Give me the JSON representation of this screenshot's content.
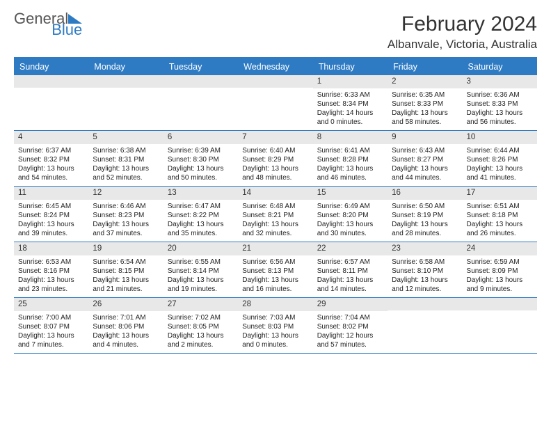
{
  "logo": {
    "part1": "General",
    "part2": "Blue"
  },
  "title": "February 2024",
  "location": "Albanvale, Victoria, Australia",
  "colors": {
    "accent": "#2e7bc4",
    "band": "#e8e8e8",
    "text": "#222222",
    "bg": "#ffffff"
  },
  "day_headers": [
    "Sunday",
    "Monday",
    "Tuesday",
    "Wednesday",
    "Thursday",
    "Friday",
    "Saturday"
  ],
  "weeks": [
    [
      {
        "date": "",
        "sunrise": "",
        "sunset": "",
        "daylight": ""
      },
      {
        "date": "",
        "sunrise": "",
        "sunset": "",
        "daylight": ""
      },
      {
        "date": "",
        "sunrise": "",
        "sunset": "",
        "daylight": ""
      },
      {
        "date": "",
        "sunrise": "",
        "sunset": "",
        "daylight": ""
      },
      {
        "date": "1",
        "sunrise": "Sunrise: 6:33 AM",
        "sunset": "Sunset: 8:34 PM",
        "daylight": "Daylight: 14 hours and 0 minutes."
      },
      {
        "date": "2",
        "sunrise": "Sunrise: 6:35 AM",
        "sunset": "Sunset: 8:33 PM",
        "daylight": "Daylight: 13 hours and 58 minutes."
      },
      {
        "date": "3",
        "sunrise": "Sunrise: 6:36 AM",
        "sunset": "Sunset: 8:33 PM",
        "daylight": "Daylight: 13 hours and 56 minutes."
      }
    ],
    [
      {
        "date": "4",
        "sunrise": "Sunrise: 6:37 AM",
        "sunset": "Sunset: 8:32 PM",
        "daylight": "Daylight: 13 hours and 54 minutes."
      },
      {
        "date": "5",
        "sunrise": "Sunrise: 6:38 AM",
        "sunset": "Sunset: 8:31 PM",
        "daylight": "Daylight: 13 hours and 52 minutes."
      },
      {
        "date": "6",
        "sunrise": "Sunrise: 6:39 AM",
        "sunset": "Sunset: 8:30 PM",
        "daylight": "Daylight: 13 hours and 50 minutes."
      },
      {
        "date": "7",
        "sunrise": "Sunrise: 6:40 AM",
        "sunset": "Sunset: 8:29 PM",
        "daylight": "Daylight: 13 hours and 48 minutes."
      },
      {
        "date": "8",
        "sunrise": "Sunrise: 6:41 AM",
        "sunset": "Sunset: 8:28 PM",
        "daylight": "Daylight: 13 hours and 46 minutes."
      },
      {
        "date": "9",
        "sunrise": "Sunrise: 6:43 AM",
        "sunset": "Sunset: 8:27 PM",
        "daylight": "Daylight: 13 hours and 44 minutes."
      },
      {
        "date": "10",
        "sunrise": "Sunrise: 6:44 AM",
        "sunset": "Sunset: 8:26 PM",
        "daylight": "Daylight: 13 hours and 41 minutes."
      }
    ],
    [
      {
        "date": "11",
        "sunrise": "Sunrise: 6:45 AM",
        "sunset": "Sunset: 8:24 PM",
        "daylight": "Daylight: 13 hours and 39 minutes."
      },
      {
        "date": "12",
        "sunrise": "Sunrise: 6:46 AM",
        "sunset": "Sunset: 8:23 PM",
        "daylight": "Daylight: 13 hours and 37 minutes."
      },
      {
        "date": "13",
        "sunrise": "Sunrise: 6:47 AM",
        "sunset": "Sunset: 8:22 PM",
        "daylight": "Daylight: 13 hours and 35 minutes."
      },
      {
        "date": "14",
        "sunrise": "Sunrise: 6:48 AM",
        "sunset": "Sunset: 8:21 PM",
        "daylight": "Daylight: 13 hours and 32 minutes."
      },
      {
        "date": "15",
        "sunrise": "Sunrise: 6:49 AM",
        "sunset": "Sunset: 8:20 PM",
        "daylight": "Daylight: 13 hours and 30 minutes."
      },
      {
        "date": "16",
        "sunrise": "Sunrise: 6:50 AM",
        "sunset": "Sunset: 8:19 PM",
        "daylight": "Daylight: 13 hours and 28 minutes."
      },
      {
        "date": "17",
        "sunrise": "Sunrise: 6:51 AM",
        "sunset": "Sunset: 8:18 PM",
        "daylight": "Daylight: 13 hours and 26 minutes."
      }
    ],
    [
      {
        "date": "18",
        "sunrise": "Sunrise: 6:53 AM",
        "sunset": "Sunset: 8:16 PM",
        "daylight": "Daylight: 13 hours and 23 minutes."
      },
      {
        "date": "19",
        "sunrise": "Sunrise: 6:54 AM",
        "sunset": "Sunset: 8:15 PM",
        "daylight": "Daylight: 13 hours and 21 minutes."
      },
      {
        "date": "20",
        "sunrise": "Sunrise: 6:55 AM",
        "sunset": "Sunset: 8:14 PM",
        "daylight": "Daylight: 13 hours and 19 minutes."
      },
      {
        "date": "21",
        "sunrise": "Sunrise: 6:56 AM",
        "sunset": "Sunset: 8:13 PM",
        "daylight": "Daylight: 13 hours and 16 minutes."
      },
      {
        "date": "22",
        "sunrise": "Sunrise: 6:57 AM",
        "sunset": "Sunset: 8:11 PM",
        "daylight": "Daylight: 13 hours and 14 minutes."
      },
      {
        "date": "23",
        "sunrise": "Sunrise: 6:58 AM",
        "sunset": "Sunset: 8:10 PM",
        "daylight": "Daylight: 13 hours and 12 minutes."
      },
      {
        "date": "24",
        "sunrise": "Sunrise: 6:59 AM",
        "sunset": "Sunset: 8:09 PM",
        "daylight": "Daylight: 13 hours and 9 minutes."
      }
    ],
    [
      {
        "date": "25",
        "sunrise": "Sunrise: 7:00 AM",
        "sunset": "Sunset: 8:07 PM",
        "daylight": "Daylight: 13 hours and 7 minutes."
      },
      {
        "date": "26",
        "sunrise": "Sunrise: 7:01 AM",
        "sunset": "Sunset: 8:06 PM",
        "daylight": "Daylight: 13 hours and 4 minutes."
      },
      {
        "date": "27",
        "sunrise": "Sunrise: 7:02 AM",
        "sunset": "Sunset: 8:05 PM",
        "daylight": "Daylight: 13 hours and 2 minutes."
      },
      {
        "date": "28",
        "sunrise": "Sunrise: 7:03 AM",
        "sunset": "Sunset: 8:03 PM",
        "daylight": "Daylight: 13 hours and 0 minutes."
      },
      {
        "date": "29",
        "sunrise": "Sunrise: 7:04 AM",
        "sunset": "Sunset: 8:02 PM",
        "daylight": "Daylight: 12 hours and 57 minutes."
      },
      {
        "date": "",
        "sunrise": "",
        "sunset": "",
        "daylight": ""
      },
      {
        "date": "",
        "sunrise": "",
        "sunset": "",
        "daylight": ""
      }
    ]
  ]
}
